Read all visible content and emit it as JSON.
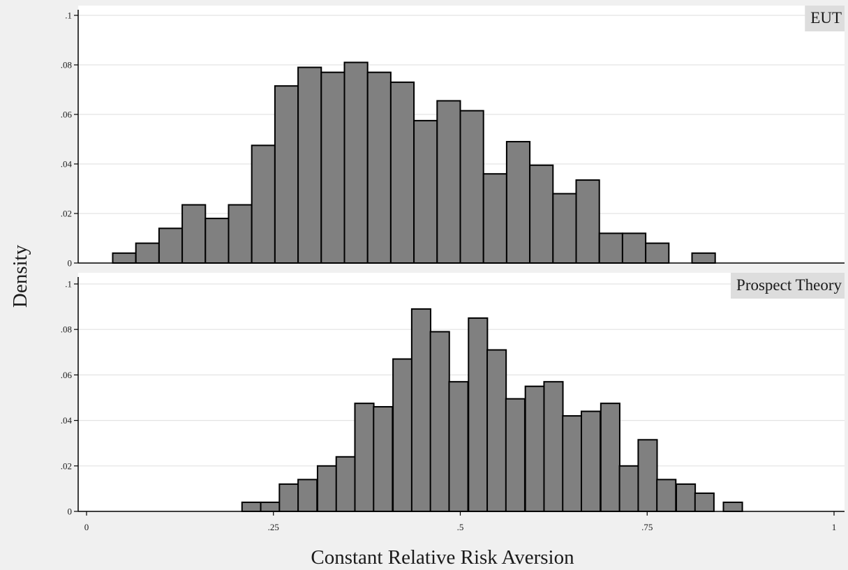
{
  "chart_data": {
    "type": "bar",
    "xlabel": "Constant Relative Risk Aversion",
    "ylabel": "Density",
    "grid": true,
    "shared_x_axis": {
      "xlim": [
        0,
        1
      ],
      "ticks": [
        0,
        0.25,
        0.5,
        0.75,
        1
      ],
      "tick_labels": [
        "0",
        ".25",
        ".5",
        ".75",
        "1"
      ]
    },
    "panels": [
      {
        "label": "EUT",
        "ylim": [
          0,
          0.1
        ],
        "yticks": [
          0,
          0.02,
          0.04,
          0.06,
          0.08,
          0.1
        ],
        "ytick_labels": [
          "0",
          ".02",
          ".04",
          ".06",
          ".08",
          ".1"
        ],
        "bin_width": 0.031,
        "bins": [
          {
            "x": 0.035,
            "density": 0.004
          },
          {
            "x": 0.066,
            "density": 0.008
          },
          {
            "x": 0.097,
            "density": 0.014
          },
          {
            "x": 0.128,
            "density": 0.0235
          },
          {
            "x": 0.159,
            "density": 0.018
          },
          {
            "x": 0.19,
            "density": 0.0235
          },
          {
            "x": 0.221,
            "density": 0.0475
          },
          {
            "x": 0.252,
            "density": 0.0715
          },
          {
            "x": 0.283,
            "density": 0.079
          },
          {
            "x": 0.314,
            "density": 0.077
          },
          {
            "x": 0.345,
            "density": 0.081
          },
          {
            "x": 0.376,
            "density": 0.077
          },
          {
            "x": 0.407,
            "density": 0.073
          },
          {
            "x": 0.438,
            "density": 0.0575
          },
          {
            "x": 0.469,
            "density": 0.0655
          },
          {
            "x": 0.5,
            "density": 0.0615
          },
          {
            "x": 0.531,
            "density": 0.036
          },
          {
            "x": 0.562,
            "density": 0.049
          },
          {
            "x": 0.593,
            "density": 0.0395
          },
          {
            "x": 0.624,
            "density": 0.028
          },
          {
            "x": 0.655,
            "density": 0.0335
          },
          {
            "x": 0.686,
            "density": 0.012
          },
          {
            "x": 0.717,
            "density": 0.012
          },
          {
            "x": 0.748,
            "density": 0.008
          },
          {
            "x": 0.81,
            "density": 0.004
          }
        ]
      },
      {
        "label": "Prospect Theory",
        "ylim": [
          0,
          0.1
        ],
        "yticks": [
          0,
          0.02,
          0.04,
          0.06,
          0.08,
          0.1
        ],
        "ytick_labels": [
          "0",
          ".02",
          ".04",
          ".06",
          ".08",
          ".1"
        ],
        "bin_width": 0.0253,
        "bins": [
          {
            "x": 0.208,
            "density": 0.004
          },
          {
            "x": 0.233,
            "density": 0.004
          },
          {
            "x": 0.258,
            "density": 0.012
          },
          {
            "x": 0.283,
            "density": 0.014
          },
          {
            "x": 0.309,
            "density": 0.02
          },
          {
            "x": 0.334,
            "density": 0.024
          },
          {
            "x": 0.359,
            "density": 0.0475
          },
          {
            "x": 0.384,
            "density": 0.046
          },
          {
            "x": 0.41,
            "density": 0.067
          },
          {
            "x": 0.435,
            "density": 0.089
          },
          {
            "x": 0.46,
            "density": 0.079
          },
          {
            "x": 0.485,
            "density": 0.057
          },
          {
            "x": 0.511,
            "density": 0.085
          },
          {
            "x": 0.536,
            "density": 0.071
          },
          {
            "x": 0.561,
            "density": 0.0495
          },
          {
            "x": 0.587,
            "density": 0.055
          },
          {
            "x": 0.612,
            "density": 0.057
          },
          {
            "x": 0.637,
            "density": 0.042
          },
          {
            "x": 0.662,
            "density": 0.044
          },
          {
            "x": 0.688,
            "density": 0.0475
          },
          {
            "x": 0.713,
            "density": 0.02
          },
          {
            "x": 0.738,
            "density": 0.0315
          },
          {
            "x": 0.763,
            "density": 0.014
          },
          {
            "x": 0.789,
            "density": 0.012
          },
          {
            "x": 0.814,
            "density": 0.008
          },
          {
            "x": 0.852,
            "density": 0.004
          }
        ]
      }
    ],
    "colors": {
      "bar_fill": "#808080",
      "bar_edge": "#000000",
      "plot_background": "#ffffff",
      "outer_background": "#f0f0f0",
      "label_strip": "#dddddd",
      "grid": "#e3e3e3"
    }
  }
}
